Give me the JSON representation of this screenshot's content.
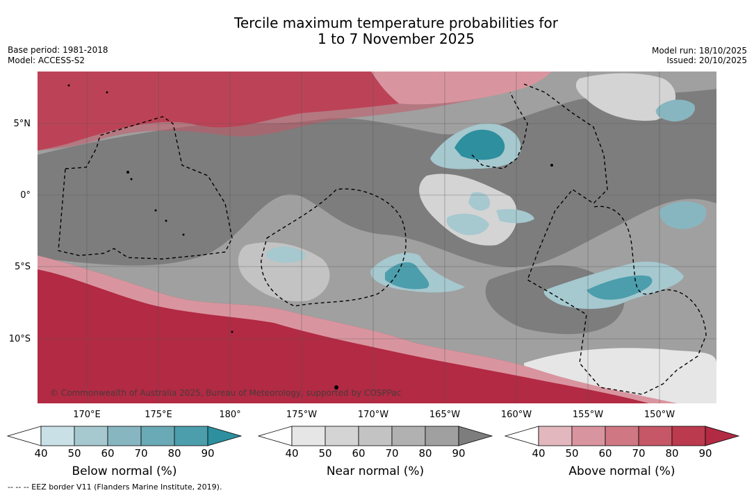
{
  "header": {
    "title_line1": "Tercile maximum temperature probabilities for",
    "title_line2": "1 to 7 November 2025",
    "base_period": "Base period: 1981-2018",
    "model": "Model: ACCESS-S2",
    "model_run": "Model run: 18/10/2025",
    "issued": "Issued: 20/10/2025"
  },
  "map": {
    "copyright": "© Commonwealth of Australia 2025, Bureau of Meteorology, supported by COSPPac",
    "lat_labels": [
      "5°N",
      "0°",
      "5°S",
      "10°S"
    ],
    "lon_labels": [
      "170°E",
      "175°E",
      "180°",
      "175°W",
      "170°W",
      "165°W",
      "160°W",
      "155°W",
      "150°W"
    ]
  },
  "legend": {
    "below": {
      "title": "Below normal (%)",
      "ticks": [
        "40",
        "50",
        "60",
        "70",
        "80",
        "90"
      ],
      "colors": [
        "#ffffff",
        "#c9e0e6",
        "#a6c8cf",
        "#88b6c0",
        "#6aaab6",
        "#4c9eac",
        "#2e8f9e"
      ]
    },
    "near": {
      "title": "Near normal (%)",
      "ticks": [
        "40",
        "50",
        "60",
        "70",
        "80",
        "90"
      ],
      "colors": [
        "#ffffff",
        "#e6e6e6",
        "#d4d4d4",
        "#c3c3c3",
        "#b1b1b1",
        "#a0a0a0",
        "#7d7d7d"
      ]
    },
    "above": {
      "title": "Above normal (%)",
      "ticks": [
        "40",
        "50",
        "60",
        "70",
        "80",
        "90"
      ],
      "colors": [
        "#ffffff",
        "#e2b7bd",
        "#d9959f",
        "#cf7884",
        "#c55767",
        "#bc3a4e",
        "#b22a44"
      ]
    }
  },
  "footnote": "--  --  -- EEZ border V11 (Flanders Marine Institute, 2019)."
}
